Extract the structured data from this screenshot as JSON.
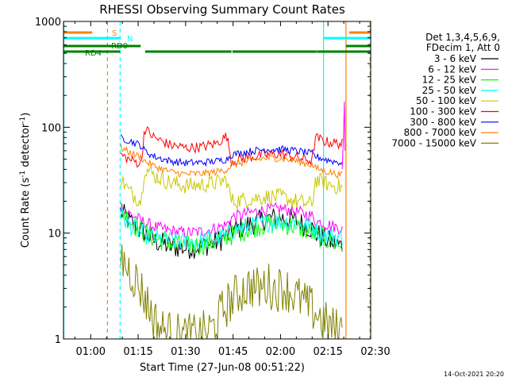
{
  "chart_data": {
    "type": "line",
    "title": "RHESSI Observing Summary Count Rates",
    "xlabel": "Start Time (27-Jun-08 00:51:22)",
    "ylabel_main": "Count Rate (s",
    "ylabel_sup1": "-1",
    "ylabel_mid": " detector",
    "ylabel_sup2": "-1",
    "ylabel_end": ")",
    "x_unit": "minutes since 00:00 UT",
    "xlim": [
      51.4,
      148.5
    ],
    "ylim": [
      1,
      1000
    ],
    "y_scale": "log",
    "x_ticks": [
      {
        "value": 60,
        "label": "01:00"
      },
      {
        "value": 75,
        "label": "01:15"
      },
      {
        "value": 90,
        "label": "01:30"
      },
      {
        "value": 105,
        "label": "01:45"
      },
      {
        "value": 120,
        "label": "02:00"
      },
      {
        "value": 135,
        "label": "02:15"
      },
      {
        "value": 150,
        "label": "02:30"
      }
    ],
    "y_ticks": [
      {
        "value": 1,
        "label": "1"
      },
      {
        "value": 10,
        "label": "10"
      },
      {
        "value": 100,
        "label": "100"
      },
      {
        "value": 1000,
        "label": "1000"
      }
    ],
    "legend_title": [
      "Det 1,3,4,5,6,9,",
      "FDecim 1, Att 0"
    ],
    "legend_position": "right",
    "series": [
      {
        "name": "3 - 6 keV",
        "color": "#000000",
        "x": [
          69.5,
          72,
          76,
          80,
          85,
          90,
          95,
          100,
          103,
          104.5,
          110,
          115,
          120,
          125,
          130,
          131,
          135,
          139.5
        ],
        "y": [
          16,
          13,
          10.5,
          8.5,
          7.5,
          7.2,
          7.5,
          8.3,
          9.3,
          10.5,
          12,
          13.5,
          14,
          13,
          11,
          10,
          8.5,
          7.5
        ]
      },
      {
        "name": "6 - 12 keV",
        "color": "#ff00ff",
        "x": [
          69.5,
          72,
          76,
          80,
          85,
          90,
          95,
          100,
          103,
          104.5,
          110,
          115,
          120,
          125,
          130,
          131,
          135,
          139.5
        ],
        "y": [
          18,
          15.5,
          13,
          11.5,
          10.5,
          10,
          10.3,
          11.2,
          12,
          14,
          15.5,
          16.5,
          17,
          16,
          14.5,
          13,
          12,
          11
        ]
      },
      {
        "name": "12 - 25 keV",
        "color": "#00ff00",
        "x": [
          69.5,
          72,
          76,
          80,
          85,
          90,
          95,
          100,
          103,
          104.5,
          110,
          115,
          120,
          125,
          130,
          131,
          135,
          139.5
        ],
        "y": [
          17,
          13.5,
          10.5,
          9,
          8,
          7.5,
          7.7,
          8.5,
          9.3,
          9.5,
          11,
          12,
          12.2,
          11.5,
          10,
          9.5,
          8.5,
          7.5
        ]
      },
      {
        "name": "25 - 50 keV",
        "color": "#00ffff",
        "x": [
          69.5,
          72,
          76,
          80,
          85,
          90,
          95,
          100,
          103,
          104.5,
          110,
          115,
          120,
          125,
          130,
          131,
          135,
          139.5
        ],
        "y": [
          15,
          12,
          10,
          9,
          8.5,
          8.3,
          8.5,
          9,
          9.5,
          10.5,
          11.5,
          12.5,
          13,
          12.5,
          11.5,
          10.5,
          9.5,
          9
        ]
      },
      {
        "name": "50 - 100 keV",
        "color": "#c8c800",
        "x": [
          69.5,
          72,
          76,
          77,
          80,
          85,
          90,
          95,
          100,
          103,
          104.5,
          110,
          115,
          120,
          125,
          130,
          131,
          135,
          139.5
        ],
        "y": [
          33,
          25,
          20,
          42,
          35,
          30,
          28,
          28.5,
          30,
          32,
          20,
          21,
          22,
          22,
          20,
          18.5,
          32,
          29,
          27
        ]
      },
      {
        "name": "100 - 300 keV",
        "color": "#ff0000",
        "x": [
          69.5,
          72,
          76,
          77,
          80,
          85,
          90,
          95,
          100,
          103,
          104.5,
          110,
          115,
          120,
          125,
          130,
          131,
          135,
          139.5
        ],
        "y": [
          55,
          50,
          45,
          98,
          80,
          68,
          64,
          65,
          71,
          83,
          48,
          52,
          55,
          56,
          52,
          48,
          80,
          72,
          70
        ]
      },
      {
        "name": "300 - 800 keV",
        "color": "#0000ff",
        "x": [
          69.5,
          72,
          76,
          77,
          80,
          85,
          90,
          95,
          100,
          103,
          104.5,
          110,
          115,
          120,
          125,
          130,
          131,
          135,
          139.5
        ],
        "y": [
          80,
          75,
          67,
          60,
          53,
          48,
          46,
          46.5,
          48,
          50,
          55,
          59,
          62,
          62,
          60,
          56,
          53,
          49,
          46
        ]
      },
      {
        "name": "800 - 7000 keV",
        "color": "#ff8000",
        "x": [
          69.5,
          72,
          76,
          77,
          80,
          85,
          90,
          95,
          100,
          103,
          104.5,
          110,
          115,
          120,
          125,
          130,
          131,
          135,
          139.5
        ],
        "y": [
          65,
          58,
          52,
          48,
          43,
          38,
          36,
          36.5,
          38,
          40,
          44,
          48,
          51,
          51,
          48,
          44,
          41,
          38,
          35
        ]
      },
      {
        "name": "7000 - 15000 keV",
        "color": "#808000",
        "x": [
          69.5,
          71,
          73,
          75,
          77,
          79,
          81,
          83,
          86,
          90,
          95,
          99,
          101,
          103,
          105,
          108,
          111,
          113,
          116,
          118,
          121,
          123,
          126,
          129,
          131,
          134,
          138,
          139.5
        ],
        "y": [
          6,
          5,
          4.2,
          3.3,
          2.5,
          1.8,
          1.35,
          1.2,
          1.1,
          1.05,
          1.1,
          1.3,
          1.7,
          2.1,
          2.4,
          2.9,
          3.2,
          2.9,
          3.3,
          2.9,
          3.1,
          2.8,
          2.4,
          2.0,
          1.8,
          1.4,
          1.2,
          1.2
        ]
      }
    ],
    "flag_bars": [
      {
        "label": "S",
        "color": "#ff8000",
        "segments": [
          [
            51.4,
            60.5
          ],
          [
            141.7,
            148.5
          ]
        ]
      },
      {
        "label": "N",
        "color": "#00ffff",
        "segments": [
          [
            51.4,
            69.5
          ],
          [
            133.6,
            148.5
          ]
        ]
      },
      {
        "label": "RD0",
        "color": "#008000",
        "segments": [
          [
            51.4,
            75.8
          ],
          [
            140.7,
            148.5
          ]
        ]
      },
      {
        "label": "RD4",
        "color": "#008000",
        "segments": [
          [
            51.4,
            69.3
          ],
          [
            77.2,
            104.5
          ],
          [
            104.8,
            131.4
          ],
          [
            131.5,
            148.5
          ]
        ]
      }
    ],
    "vertical_markers": [
      {
        "x": 51.5,
        "color": "#00ffff",
        "style": "solid"
      },
      {
        "x": 65.3,
        "color": "#ff8000",
        "style": "dashed"
      },
      {
        "x": 69.3,
        "color": "#00ffff",
        "style": "dashed"
      },
      {
        "x": 133.6,
        "color": "#00ffff",
        "style": "solid"
      },
      {
        "x": 140.7,
        "color": "#ff8000",
        "style": "solid"
      },
      {
        "x": 148.3,
        "color": "#ff8000",
        "style": "dashed"
      },
      {
        "x": 148.5,
        "color": "#00ffff",
        "style": "dashed"
      }
    ],
    "timestamp": "14-Oct-2021 20:20"
  }
}
